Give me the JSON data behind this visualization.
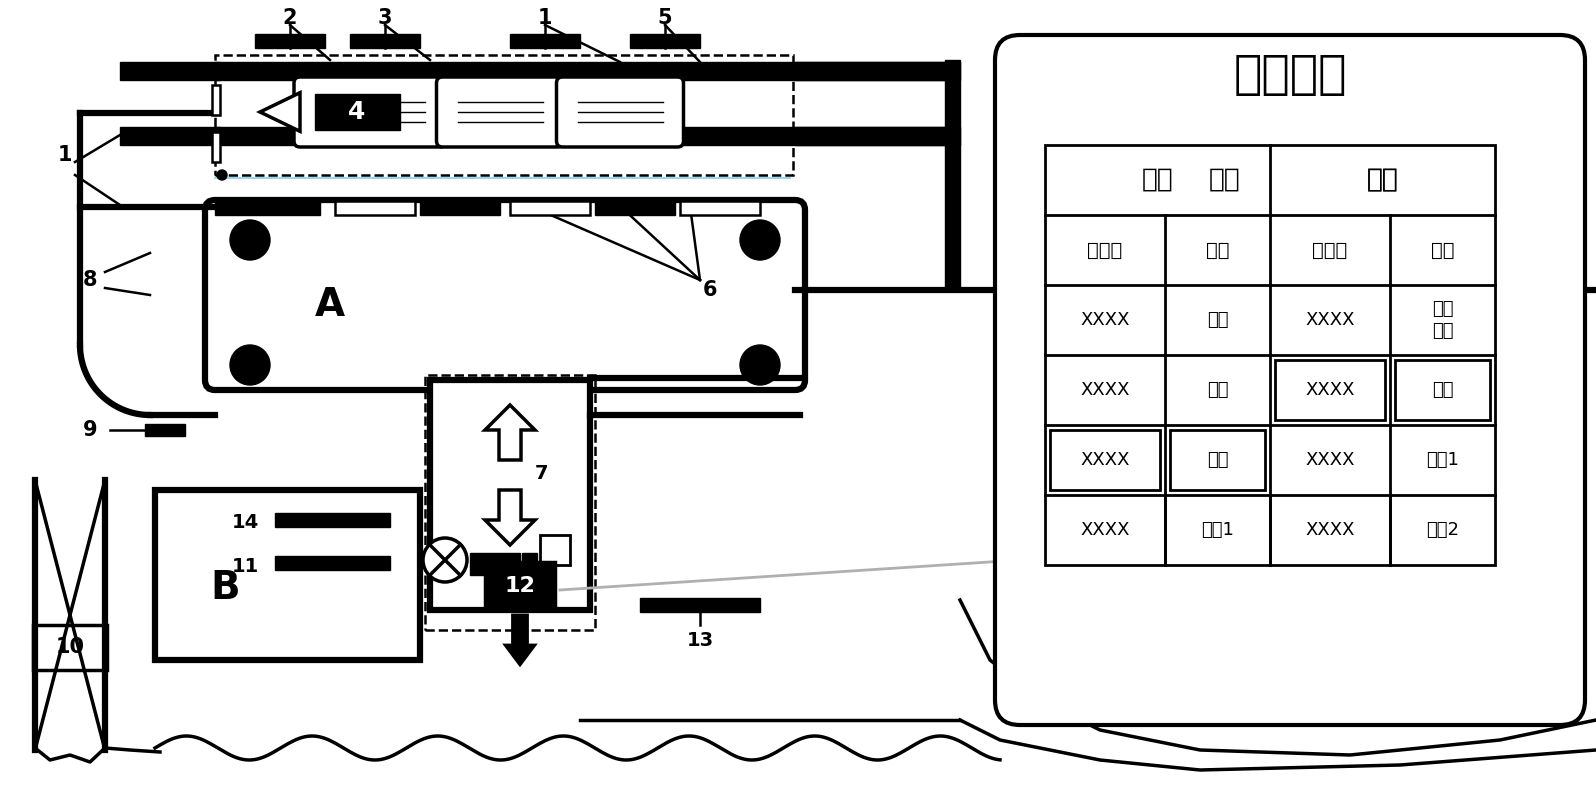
{
  "bg_color": "#ffffff",
  "table_title": "列车动态",
  "table_header1": [
    "到达",
    "出发"
  ],
  "table_header2": [
    "列车号",
    "状态",
    "列车号",
    "状态"
  ],
  "table_data": [
    [
      "XXXX",
      "已达",
      "XXXX",
      "超时\n已发"
    ],
    [
      "XXXX",
      "已达",
      "XXXX",
      "将发"
    ],
    [
      "XXXX",
      "将达",
      "XXXX",
      "待发1"
    ],
    [
      "XXXX",
      "将达1",
      "XXXX",
      "待发2"
    ]
  ],
  "highlighted_r1": [
    [
      2
    ],
    [
      3
    ]
  ],
  "highlighted_r2": [
    [
      0
    ],
    [
      1
    ]
  ],
  "label_A": "A",
  "label_B": "B"
}
